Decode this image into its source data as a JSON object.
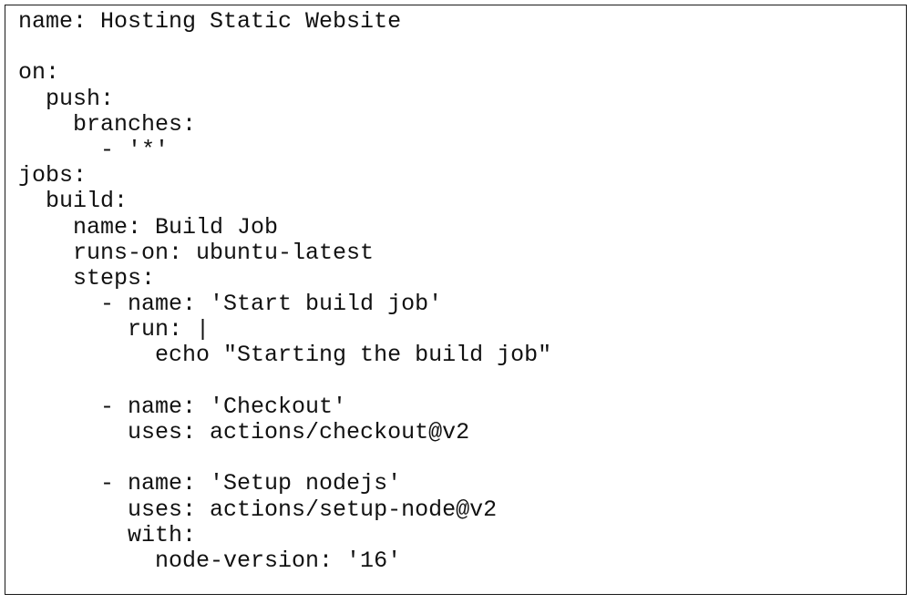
{
  "document": {
    "language": "yaml",
    "lines": [
      "name: Hosting Static Website",
      "",
      "on:",
      "  push:",
      "    branches:",
      "      - '*'",
      "jobs:",
      "  build:",
      "    name: Build Job",
      "    runs-on: ubuntu-latest",
      "    steps:",
      "      - name: 'Start build job'",
      "        run: |",
      "          echo \"Starting the build job\"",
      "",
      "      - name: 'Checkout'",
      "        uses: actions/checkout@v2",
      "",
      "      - name: 'Setup nodejs'",
      "        uses: actions/setup-node@v2",
      "        with:",
      "          node-version: '16'"
    ]
  }
}
